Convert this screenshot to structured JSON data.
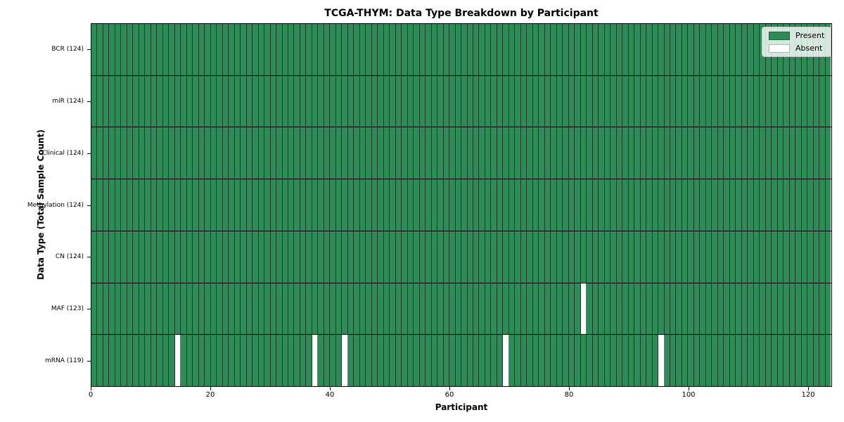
{
  "chart_data": {
    "type": "heatmap",
    "title": "TCGA-THYM: Data Type Breakdown by Participant",
    "xlabel": "Participant",
    "ylabel": "Data Type (Total Sample Count)",
    "x_ticks": [
      0,
      20,
      40,
      60,
      80,
      100,
      120
    ],
    "xlim": [
      0,
      124
    ],
    "n_participants": 124,
    "grid": "off",
    "rows": [
      {
        "label": "BCR (124)",
        "data_type": "BCR",
        "present_count": 124,
        "absent_participants": []
      },
      {
        "label": "miR (124)",
        "data_type": "miR",
        "present_count": 124,
        "absent_participants": []
      },
      {
        "label": "Clinical (124)",
        "data_type": "Clinical",
        "present_count": 124,
        "absent_participants": []
      },
      {
        "label": "Methylation (124)",
        "data_type": "Methylation",
        "present_count": 124,
        "absent_participants": []
      },
      {
        "label": "CN (124)",
        "data_type": "CN",
        "present_count": 124,
        "absent_participants": []
      },
      {
        "label": "MAF (123)",
        "data_type": "MAF",
        "present_count": 123,
        "absent_participants": [
          82
        ]
      },
      {
        "label": "mRNA (119)",
        "data_type": "mRNA",
        "present_count": 119,
        "absent_participants": [
          14,
          37,
          42,
          69,
          95
        ]
      }
    ],
    "legend": {
      "position": "upper right",
      "items": [
        {
          "label": "Present",
          "color": "#2e8b57"
        },
        {
          "label": "Absent",
          "color": "#ffffff"
        }
      ]
    },
    "colors": {
      "present": "#2e8b57",
      "absent": "#ffffff",
      "cell_edge": "rgba(0,0,0,0.55)",
      "row_divider": "#000000",
      "spine": "#000000"
    }
  }
}
